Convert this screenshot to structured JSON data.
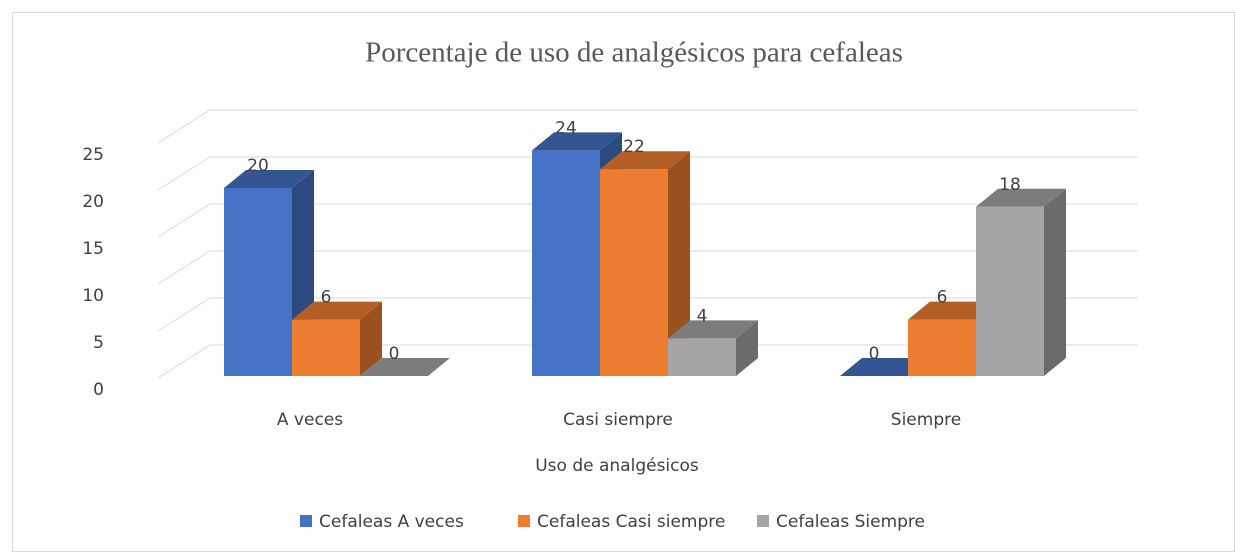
{
  "chart_data": {
    "type": "bar3d",
    "title": "Porcentaje de uso de analgésicos para cefaleas",
    "x_label": "Uso de analgésicos",
    "categories": [
      "A veces",
      "Casi siempre",
      "Siempre"
    ],
    "series": [
      {
        "name": "Cefaleas A veces",
        "color": "#4472c4",
        "values": [
          20,
          24,
          0
        ]
      },
      {
        "name": "Cefaleas Casi siempre",
        "color": "#ed7d31",
        "values": [
          6,
          22,
          6
        ]
      },
      {
        "name": "Cefaleas Siempre",
        "color": "#a5a5a5",
        "values": [
          0,
          4,
          18
        ]
      }
    ],
    "ylim": [
      0,
      25
    ],
    "yticks": [
      0,
      5,
      10,
      15,
      20,
      25
    ],
    "grid": true,
    "legend": "bottom"
  }
}
